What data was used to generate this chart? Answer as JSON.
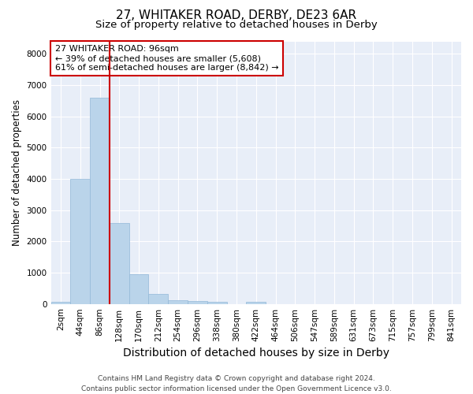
{
  "title_line1": "27, WHITAKER ROAD, DERBY, DE23 6AR",
  "title_line2": "Size of property relative to detached houses in Derby",
  "xlabel": "Distribution of detached houses by size in Derby",
  "ylabel": "Number of detached properties",
  "bin_labels": [
    "2sqm",
    "44sqm",
    "86sqm",
    "128sqm",
    "170sqm",
    "212sqm",
    "254sqm",
    "296sqm",
    "338sqm",
    "380sqm",
    "422sqm",
    "464sqm",
    "506sqm",
    "547sqm",
    "589sqm",
    "631sqm",
    "673sqm",
    "715sqm",
    "757sqm",
    "799sqm",
    "841sqm"
  ],
  "bar_heights": [
    80,
    4000,
    6600,
    2600,
    950,
    320,
    130,
    100,
    70,
    0,
    80,
    0,
    0,
    0,
    0,
    0,
    0,
    0,
    0,
    0,
    0
  ],
  "bar_color": "#bad4ea",
  "bar_edge_color": "#93b8d8",
  "bg_color": "#e8eef8",
  "grid_color": "#ffffff",
  "vline_color": "#cc0000",
  "annotation_text": "27 WHITAKER ROAD: 96sqm\n← 39% of detached houses are smaller (5,608)\n61% of semi-detached houses are larger (8,842) →",
  "annotation_box_color": "#ffffff",
  "annotation_edge_color": "#cc0000",
  "ylim_max": 8400,
  "yticks": [
    0,
    1000,
    2000,
    3000,
    4000,
    5000,
    6000,
    7000,
    8000
  ],
  "footer_line1": "Contains HM Land Registry data © Crown copyright and database right 2024.",
  "footer_line2": "Contains public sector information licensed under the Open Government Licence v3.0.",
  "title_fontsize": 11,
  "subtitle_fontsize": 9.5,
  "xlabel_fontsize": 10,
  "ylabel_fontsize": 8.5,
  "tick_fontsize": 7.5,
  "annotation_fontsize": 8,
  "footer_fontsize": 6.5
}
